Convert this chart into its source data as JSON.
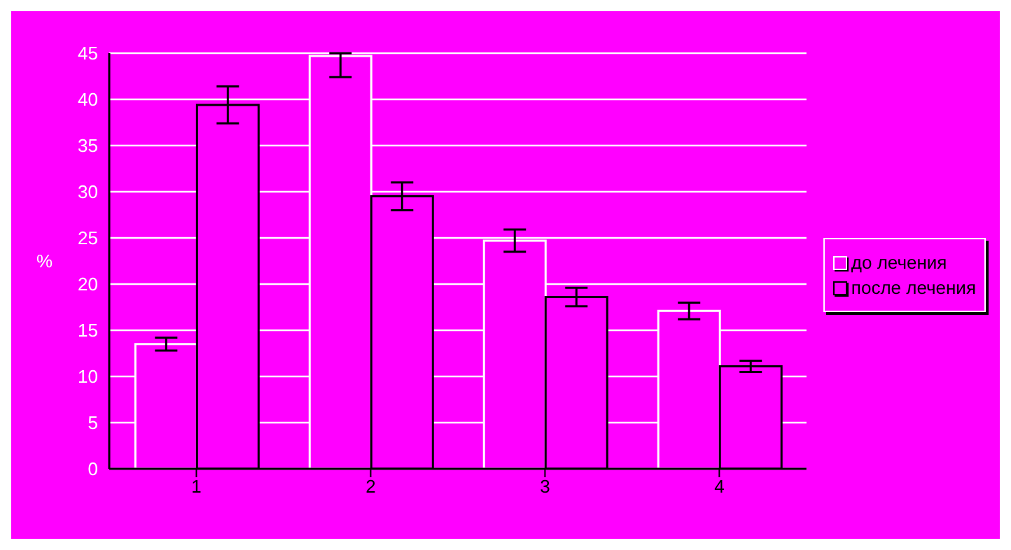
{
  "chart_data": {
    "type": "bar",
    "ylabel": "%",
    "categories": [
      "1",
      "2",
      "3",
      "4"
    ],
    "series": [
      {
        "name": "до лечения",
        "color": "#ffffff",
        "values": [
          13.5,
          44.7,
          24.7,
          17.1
        ],
        "errors": [
          0.7,
          [
            42.4,
            45
          ],
          1.2,
          0.9
        ]
      },
      {
        "name": "после лечения",
        "color": "#000000",
        "values": [
          39.4,
          29.5,
          18.6,
          11.1
        ],
        "errors": [
          2,
          1.5,
          1,
          0.6
        ]
      }
    ],
    "ylim": [
      0,
      45
    ],
    "yticks": [
      0,
      5,
      10,
      15,
      20,
      25,
      30,
      35,
      40,
      45
    ],
    "grid": "y",
    "legend": "right"
  }
}
